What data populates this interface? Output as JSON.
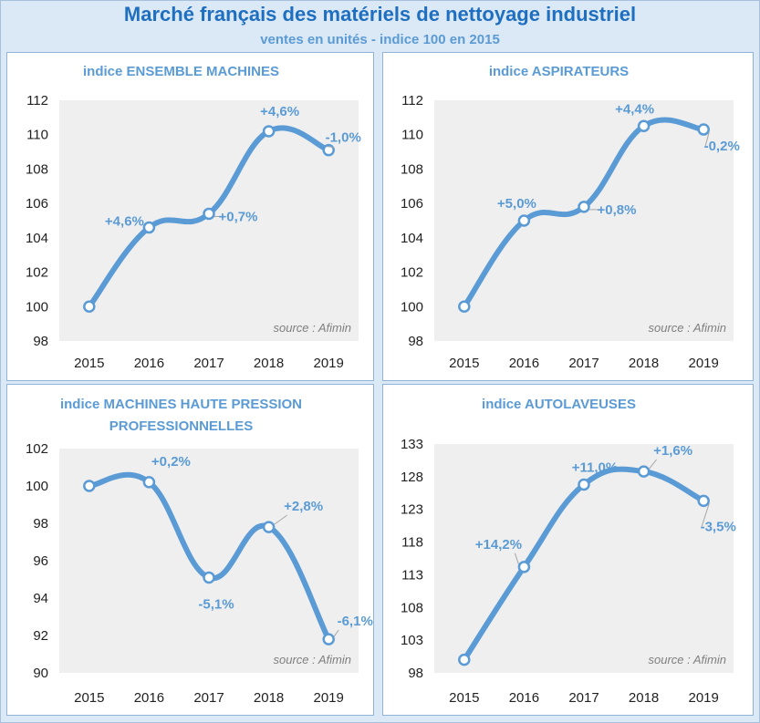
{
  "title": "Marché français des matériels de nettoyage industriel",
  "subtitle": "ventes en unités - indice 100 en 2015",
  "colors": {
    "line": "#5b9bd5",
    "title": "#1f6fc1",
    "plot_bg": "#efefef",
    "panel_bg": "#ffffff",
    "frame_bg": "#dbe8f5"
  },
  "chart_data": [
    {
      "type": "line",
      "title_lines": [
        "indice ENSEMBLE MACHINES"
      ],
      "categories": [
        "2015",
        "2016",
        "2017",
        "2018",
        "2019"
      ],
      "values": [
        100,
        104.6,
        105.4,
        110.2,
        109.1
      ],
      "labels": [
        "",
        "+4,6%",
        "+0,7%",
        "+4,6%",
        "-1,0%"
      ],
      "yticks": [
        "98",
        "100",
        "102",
        "104",
        "106",
        "108",
        "110",
        "112"
      ],
      "ylim": [
        98,
        112
      ],
      "source": "source : Afimin",
      "grid": false,
      "smooth": true
    },
    {
      "type": "line",
      "title_lines": [
        "indice ASPIRATEURS"
      ],
      "categories": [
        "2015",
        "2016",
        "2017",
        "2018",
        "2019"
      ],
      "values": [
        100,
        105.0,
        105.8,
        110.5,
        110.3
      ],
      "labels": [
        "",
        "+5,0%",
        "+0,8%",
        "+4,4%",
        "-0,2%"
      ],
      "yticks": [
        "98",
        "100",
        "102",
        "104",
        "106",
        "108",
        "110",
        "112"
      ],
      "ylim": [
        98,
        112
      ],
      "source": "source : Afimin",
      "grid": false,
      "smooth": true
    },
    {
      "type": "line",
      "title_lines": [
        "indice  MACHINES HAUTE PRESSION",
        "PROFESSIONNELLES"
      ],
      "categories": [
        "2015",
        "2016",
        "2017",
        "2018",
        "2019"
      ],
      "values": [
        100,
        100.2,
        95.1,
        97.8,
        91.8
      ],
      "labels": [
        "",
        "+0,2%",
        "-5,1%",
        "+2,8%",
        "-6,1%"
      ],
      "yticks": [
        "90",
        "92",
        "94",
        "96",
        "98",
        "100",
        "102"
      ],
      "ylim": [
        90,
        102
      ],
      "source": "source : Afimin",
      "grid": false,
      "smooth": true
    },
    {
      "type": "line",
      "title_lines": [
        "indice  AUTOLAVEUSES"
      ],
      "categories": [
        "2015",
        "2016",
        "2017",
        "2018",
        "2019"
      ],
      "values": [
        100,
        114.2,
        126.8,
        128.8,
        124.3
      ],
      "labels": [
        "",
        "+14,2%",
        "+11,0%",
        "+1,6%",
        "-3,5%"
      ],
      "yticks": [
        "98",
        "103",
        "108",
        "113",
        "118",
        "123",
        "128",
        "133"
      ],
      "ylim": [
        98,
        133
      ],
      "source": "source : Afimin",
      "grid": false,
      "smooth": true
    }
  ]
}
